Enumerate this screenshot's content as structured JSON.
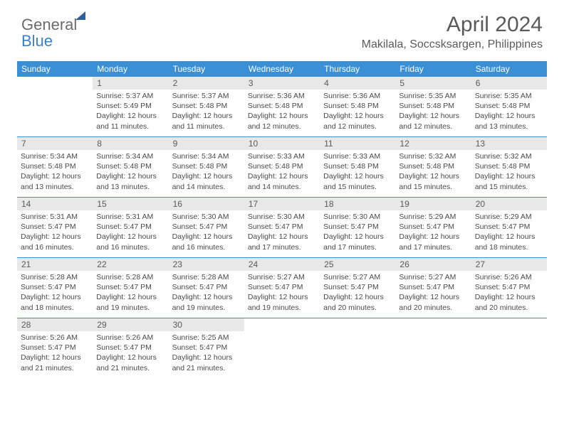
{
  "logo": {
    "text1": "General",
    "text2": "Blue"
  },
  "title": "April 2024",
  "location": "Makilala, Soccsksargen, Philippines",
  "day_names": [
    "Sunday",
    "Monday",
    "Tuesday",
    "Wednesday",
    "Thursday",
    "Friday",
    "Saturday"
  ],
  "colors": {
    "header_bg": "#3b8fd4",
    "header_text": "#ffffff",
    "date_bg": "#e8e8e8",
    "border": "#3b8fd4"
  },
  "weeks": [
    [
      {
        "n": "",
        "sr": "",
        "ss": "",
        "dl": ""
      },
      {
        "n": "1",
        "sr": "Sunrise: 5:37 AM",
        "ss": "Sunset: 5:49 PM",
        "dl": "Daylight: 12 hours and 11 minutes."
      },
      {
        "n": "2",
        "sr": "Sunrise: 5:37 AM",
        "ss": "Sunset: 5:48 PM",
        "dl": "Daylight: 12 hours and 11 minutes."
      },
      {
        "n": "3",
        "sr": "Sunrise: 5:36 AM",
        "ss": "Sunset: 5:48 PM",
        "dl": "Daylight: 12 hours and 12 minutes."
      },
      {
        "n": "4",
        "sr": "Sunrise: 5:36 AM",
        "ss": "Sunset: 5:48 PM",
        "dl": "Daylight: 12 hours and 12 minutes."
      },
      {
        "n": "5",
        "sr": "Sunrise: 5:35 AM",
        "ss": "Sunset: 5:48 PM",
        "dl": "Daylight: 12 hours and 12 minutes."
      },
      {
        "n": "6",
        "sr": "Sunrise: 5:35 AM",
        "ss": "Sunset: 5:48 PM",
        "dl": "Daylight: 12 hours and 13 minutes."
      }
    ],
    [
      {
        "n": "7",
        "sr": "Sunrise: 5:34 AM",
        "ss": "Sunset: 5:48 PM",
        "dl": "Daylight: 12 hours and 13 minutes."
      },
      {
        "n": "8",
        "sr": "Sunrise: 5:34 AM",
        "ss": "Sunset: 5:48 PM",
        "dl": "Daylight: 12 hours and 13 minutes."
      },
      {
        "n": "9",
        "sr": "Sunrise: 5:34 AM",
        "ss": "Sunset: 5:48 PM",
        "dl": "Daylight: 12 hours and 14 minutes."
      },
      {
        "n": "10",
        "sr": "Sunrise: 5:33 AM",
        "ss": "Sunset: 5:48 PM",
        "dl": "Daylight: 12 hours and 14 minutes."
      },
      {
        "n": "11",
        "sr": "Sunrise: 5:33 AM",
        "ss": "Sunset: 5:48 PM",
        "dl": "Daylight: 12 hours and 15 minutes."
      },
      {
        "n": "12",
        "sr": "Sunrise: 5:32 AM",
        "ss": "Sunset: 5:48 PM",
        "dl": "Daylight: 12 hours and 15 minutes."
      },
      {
        "n": "13",
        "sr": "Sunrise: 5:32 AM",
        "ss": "Sunset: 5:48 PM",
        "dl": "Daylight: 12 hours and 15 minutes."
      }
    ],
    [
      {
        "n": "14",
        "sr": "Sunrise: 5:31 AM",
        "ss": "Sunset: 5:47 PM",
        "dl": "Daylight: 12 hours and 16 minutes."
      },
      {
        "n": "15",
        "sr": "Sunrise: 5:31 AM",
        "ss": "Sunset: 5:47 PM",
        "dl": "Daylight: 12 hours and 16 minutes."
      },
      {
        "n": "16",
        "sr": "Sunrise: 5:30 AM",
        "ss": "Sunset: 5:47 PM",
        "dl": "Daylight: 12 hours and 16 minutes."
      },
      {
        "n": "17",
        "sr": "Sunrise: 5:30 AM",
        "ss": "Sunset: 5:47 PM",
        "dl": "Daylight: 12 hours and 17 minutes."
      },
      {
        "n": "18",
        "sr": "Sunrise: 5:30 AM",
        "ss": "Sunset: 5:47 PM",
        "dl": "Daylight: 12 hours and 17 minutes."
      },
      {
        "n": "19",
        "sr": "Sunrise: 5:29 AM",
        "ss": "Sunset: 5:47 PM",
        "dl": "Daylight: 12 hours and 17 minutes."
      },
      {
        "n": "20",
        "sr": "Sunrise: 5:29 AM",
        "ss": "Sunset: 5:47 PM",
        "dl": "Daylight: 12 hours and 18 minutes."
      }
    ],
    [
      {
        "n": "21",
        "sr": "Sunrise: 5:28 AM",
        "ss": "Sunset: 5:47 PM",
        "dl": "Daylight: 12 hours and 18 minutes."
      },
      {
        "n": "22",
        "sr": "Sunrise: 5:28 AM",
        "ss": "Sunset: 5:47 PM",
        "dl": "Daylight: 12 hours and 19 minutes."
      },
      {
        "n": "23",
        "sr": "Sunrise: 5:28 AM",
        "ss": "Sunset: 5:47 PM",
        "dl": "Daylight: 12 hours and 19 minutes."
      },
      {
        "n": "24",
        "sr": "Sunrise: 5:27 AM",
        "ss": "Sunset: 5:47 PM",
        "dl": "Daylight: 12 hours and 19 minutes."
      },
      {
        "n": "25",
        "sr": "Sunrise: 5:27 AM",
        "ss": "Sunset: 5:47 PM",
        "dl": "Daylight: 12 hours and 20 minutes."
      },
      {
        "n": "26",
        "sr": "Sunrise: 5:27 AM",
        "ss": "Sunset: 5:47 PM",
        "dl": "Daylight: 12 hours and 20 minutes."
      },
      {
        "n": "27",
        "sr": "Sunrise: 5:26 AM",
        "ss": "Sunset: 5:47 PM",
        "dl": "Daylight: 12 hours and 20 minutes."
      }
    ],
    [
      {
        "n": "28",
        "sr": "Sunrise: 5:26 AM",
        "ss": "Sunset: 5:47 PM",
        "dl": "Daylight: 12 hours and 21 minutes."
      },
      {
        "n": "29",
        "sr": "Sunrise: 5:26 AM",
        "ss": "Sunset: 5:47 PM",
        "dl": "Daylight: 12 hours and 21 minutes."
      },
      {
        "n": "30",
        "sr": "Sunrise: 5:25 AM",
        "ss": "Sunset: 5:47 PM",
        "dl": "Daylight: 12 hours and 21 minutes."
      },
      {
        "n": "",
        "sr": "",
        "ss": "",
        "dl": ""
      },
      {
        "n": "",
        "sr": "",
        "ss": "",
        "dl": ""
      },
      {
        "n": "",
        "sr": "",
        "ss": "",
        "dl": ""
      },
      {
        "n": "",
        "sr": "",
        "ss": "",
        "dl": ""
      }
    ]
  ]
}
